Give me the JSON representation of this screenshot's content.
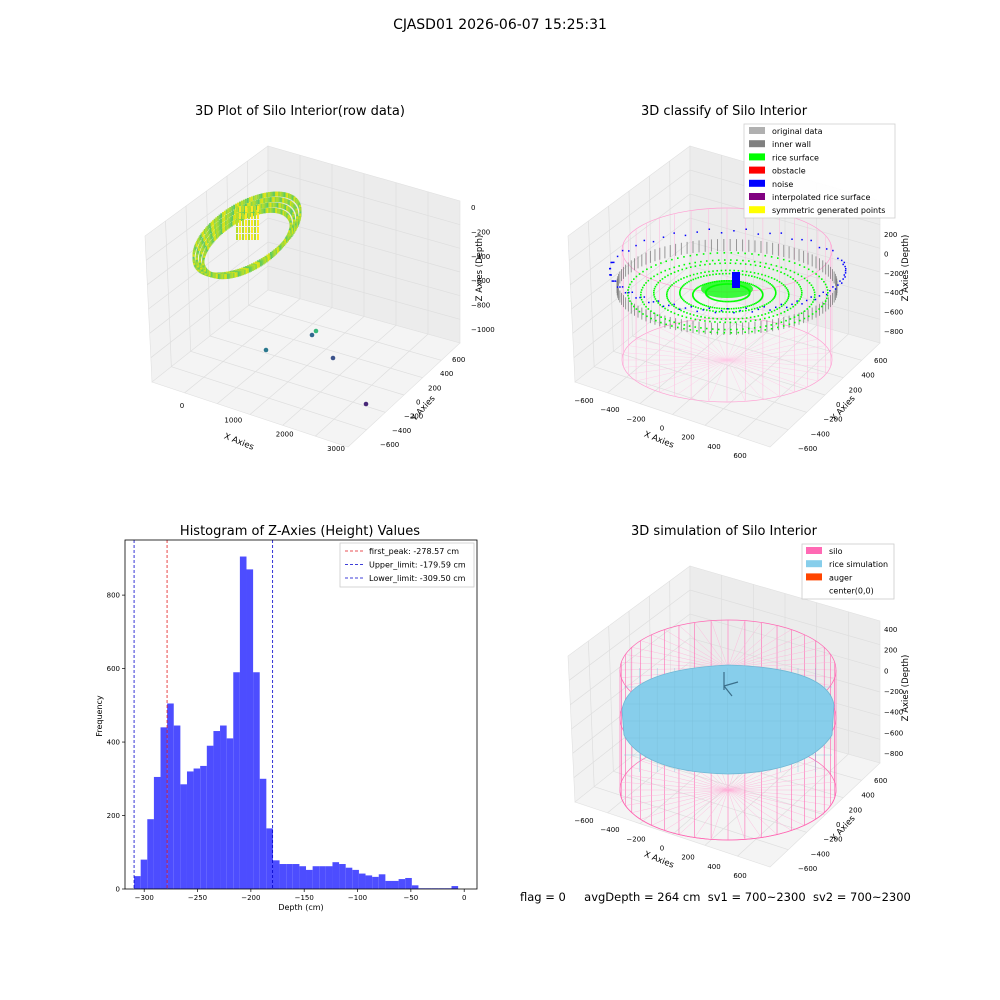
{
  "suptitle": "CJASD01 2026-06-07 15:25:31",
  "footer": {
    "flag": "flag = 0",
    "avg": "avgDepth = 264 cm",
    "sv1": "sv1 = 700~2300",
    "sv2": "sv2 = 700~2300"
  },
  "colors": {
    "hist_bar": "#4d4dff",
    "peak_line": "#e31a1c",
    "limit_line": "#0000cc",
    "silo": "#ff69b4",
    "rice_sim": "#87ceeb",
    "auger": "#ff4500",
    "rice_surface": "#00ff00",
    "inner_wall": "#808080",
    "noise": "#0000ff"
  },
  "chart_data": [
    {
      "type": "scatter",
      "title": "3D Plot of Silo Interior(row data)",
      "xlabel": "X Axies",
      "ylabel": "Y Axies",
      "zlabel": "Z Axies (Depth)",
      "x_ticks": [
        "0",
        "1000",
        "2000",
        "3000"
      ],
      "y_ticks": [
        "600",
        "400",
        "200",
        "0",
        "−200",
        "−400",
        "−600"
      ],
      "z_ticks": [
        "0",
        "−200",
        "−400",
        "−600",
        "−800",
        "−1000"
      ],
      "colormap": "viridis"
    },
    {
      "type": "scatter",
      "title": "3D classify of Silo Interior",
      "xlabel": "X Axies",
      "ylabel": "Y Axies",
      "zlabel": "Z Axies (Depth)",
      "x_ticks": [
        "−600",
        "−400",
        "−200",
        "0",
        "200",
        "400",
        "600"
      ],
      "y_ticks": [
        "600",
        "400",
        "200",
        "0",
        "−200",
        "−400",
        "−600"
      ],
      "z_ticks": [
        "200",
        "0",
        "−200",
        "−400",
        "−600",
        "−800"
      ],
      "legend_position": "upper-right",
      "legend": [
        {
          "label": "original data",
          "color": "#b0b0b0"
        },
        {
          "label": "inner wall",
          "color": "#808080"
        },
        {
          "label": "rice surface",
          "color": "#00ff00"
        },
        {
          "label": "obstacle",
          "color": "#ff0000"
        },
        {
          "label": "noise",
          "color": "#0000ff"
        },
        {
          "label": "interpolated rice surface",
          "color": "#800080"
        },
        {
          "label": "symmetric generated points",
          "color": "#ffff00"
        }
      ]
    },
    {
      "type": "bar",
      "title": "Histogram of Z-Axies (Height) Values",
      "xlabel": "Depth (cm)",
      "ylabel": "Frequency",
      "xlim": [
        -318,
        12
      ],
      "ylim": [
        0,
        950
      ],
      "x_ticks": [
        -300,
        -250,
        -200,
        -150,
        -100,
        -50,
        0
      ],
      "x_tick_labels": [
        "−300",
        "−250",
        "−200",
        "−150",
        "−100",
        "−50",
        "0"
      ],
      "y_ticks": [
        0,
        200,
        400,
        600,
        800
      ],
      "bin_start": -309.5,
      "bin_width": 6.2,
      "values": [
        35,
        80,
        190,
        305,
        440,
        505,
        445,
        285,
        320,
        328,
        335,
        390,
        430,
        445,
        410,
        590,
        905,
        870,
        590,
        300,
        165,
        78,
        68,
        68,
        68,
        62,
        52,
        62,
        62,
        62,
        73,
        68,
        58,
        52,
        42,
        37,
        33,
        40,
        22,
        22,
        27,
        30,
        10,
        2,
        2,
        2,
        2,
        2,
        8
      ],
      "vlines": [
        {
          "x": -278.57,
          "label": "first_peak: -278.57 cm",
          "color": "#e31a1c"
        },
        {
          "x": -179.59,
          "label": "Upper_limit: -179.59 cm",
          "color": "#0000cc"
        },
        {
          "x": -309.5,
          "label": "Lower_limit: -309.50 cm",
          "color": "#0000cc"
        }
      ],
      "legend_position": "upper-right"
    },
    {
      "type": "scatter",
      "title": "3D simulation of Silo Interior",
      "xlabel": "X Axies",
      "ylabel": "Y Axies",
      "zlabel": "Z Axies (Depth)",
      "x_ticks": [
        "−600",
        "−400",
        "−200",
        "0",
        "200",
        "400",
        "600"
      ],
      "y_ticks": [
        "600",
        "400",
        "200",
        "0",
        "−200",
        "−400",
        "−600"
      ],
      "z_ticks": [
        "400",
        "200",
        "0",
        "−200",
        "−400",
        "−600",
        "−800"
      ],
      "legend_position": "upper-right",
      "legend": [
        {
          "label": "silo",
          "color": "#ff69b4"
        },
        {
          "label": "rice simulation",
          "color": "#87ceeb"
        },
        {
          "label": "auger",
          "color": "#ff4500"
        },
        {
          "label": "center(0,0)",
          "color": ""
        }
      ]
    }
  ]
}
